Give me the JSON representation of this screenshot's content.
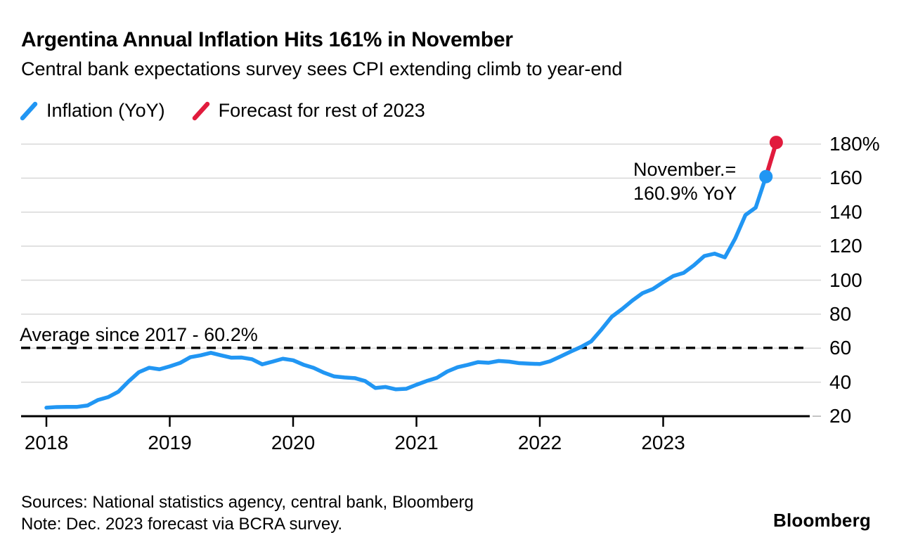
{
  "header": {
    "title": "Argentina Annual Inflation Hits 161% in November",
    "subtitle": "Central bank expectations survey sees CPI extending climb to year-end"
  },
  "legend": [
    {
      "label": "Inflation (YoY)",
      "color": "#2196f3"
    },
    {
      "label": "Forecast for rest of 2023",
      "color": "#e11b3d"
    }
  ],
  "footer": {
    "sources": "Sources: National statistics agency, central bank, Bloomberg",
    "note": "Note: Dec. 2023 forecast via BCRA survey.",
    "brand": "Bloomberg"
  },
  "chart_data": {
    "type": "line",
    "title": "Argentina Annual Inflation Hits 161% in November",
    "subtitle": "Central bank expectations survey sees CPI extending climb to year-end",
    "unit": "%",
    "ylim": [
      20,
      180
    ],
    "grid": "horizontal",
    "legend_position": "top-left",
    "x_tick_labels": [
      "2018",
      "2019",
      "2020",
      "2021",
      "2022",
      "2023"
    ],
    "y_tick_labels": [
      "180%",
      "160",
      "140",
      "120",
      "100",
      "80",
      "60",
      "40",
      "20"
    ],
    "y_tick_values": [
      180,
      160,
      140,
      120,
      100,
      80,
      60,
      40,
      20
    ],
    "average_line": {
      "label": "Average since 2017 - 60.2%",
      "value": 60.2,
      "style": "dashed",
      "color": "#000000"
    },
    "annotation": {
      "line1": "November.=",
      "line2": "160.9% YoY",
      "month": "2023-11",
      "value": 160.9
    },
    "series": [
      {
        "name": "Inflation (YoY)",
        "color": "#2196f3",
        "start_month": "2018-01",
        "frequency": "monthly",
        "end_dot": true,
        "values": [
          25.0,
          25.4,
          25.5,
          25.5,
          26.3,
          29.5,
          31.2,
          34.4,
          40.5,
          45.9,
          48.5,
          47.6,
          49.3,
          51.3,
          54.7,
          55.8,
          57.3,
          55.8,
          54.4,
          54.5,
          53.5,
          50.5,
          52.1,
          53.8,
          52.9,
          50.3,
          48.4,
          45.6,
          43.4,
          42.8,
          42.4,
          40.7,
          36.6,
          37.2,
          35.8,
          36.1,
          38.5,
          40.7,
          42.6,
          46.3,
          48.8,
          50.2,
          51.8,
          51.4,
          52.5,
          52.1,
          51.2,
          50.9,
          50.7,
          52.3,
          55.1,
          58.0,
          60.7,
          64.0,
          71.0,
          78.5,
          83.0,
          88.0,
          92.4,
          94.8,
          98.8,
          102.5,
          104.3,
          108.8,
          114.2,
          115.6,
          113.4,
          124.4,
          138.3,
          142.7,
          160.9
        ]
      },
      {
        "name": "Forecast for rest of 2023",
        "color": "#e11b3d",
        "start_month": "2023-11",
        "frequency": "monthly",
        "end_dot": true,
        "values": [
          160.9,
          181.0
        ]
      }
    ]
  }
}
